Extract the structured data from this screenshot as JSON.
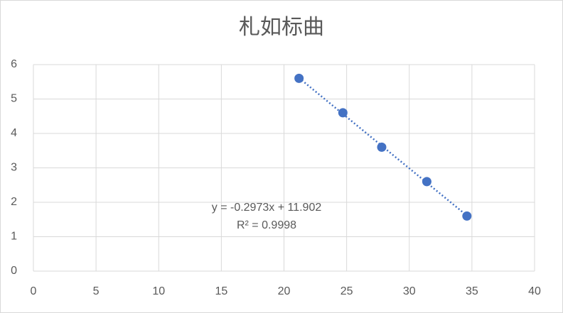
{
  "chart_data": {
    "type": "scatter",
    "title": "札如标曲",
    "series": [
      {
        "name": "series",
        "color": "#4472c4",
        "x": [
          21.2,
          24.7,
          27.8,
          31.4,
          34.6
        ],
        "values": [
          5.6,
          4.6,
          3.6,
          2.6,
          1.6
        ]
      }
    ],
    "xlim": [
      0,
      40
    ],
    "xticks": [
      0,
      5,
      10,
      15,
      20,
      25,
      30,
      35,
      40
    ],
    "ylim": [
      0,
      6
    ],
    "yticks": [
      0,
      1,
      2,
      3,
      4,
      5,
      6
    ],
    "grid": true,
    "trendline": {
      "style": "dotted",
      "equation": "y = -0.2973x + 11.902",
      "r_squared": "R² = 0.9998"
    }
  }
}
